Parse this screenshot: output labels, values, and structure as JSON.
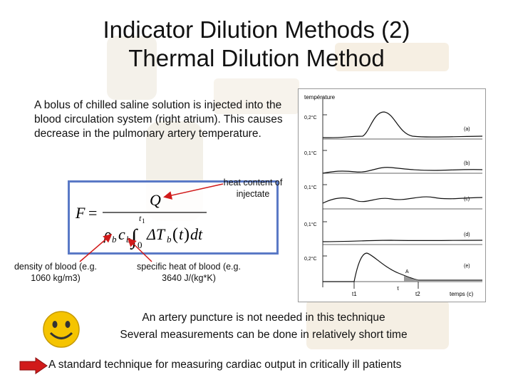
{
  "title": {
    "line1": "Indicator Dilution Methods (2)",
    "line2": "Thermal Dilution Method"
  },
  "intro_text": "A bolus of chilled saline solution is injected into the blood circulation system (right atrium). This causes decrease in the pulmonary artery temperature.",
  "annotations": {
    "heat_content": "heat content of injectate",
    "density": "density of blood (e.g. 1060 kg/m3)",
    "specific_heat": "specific heat of blood (e.g. 3640 J/(kg*K)"
  },
  "formula": {
    "lhs": "F",
    "equals": "=",
    "numerator": "Q",
    "rho": "ρ",
    "rho_sub": "b",
    "c": "c",
    "c_sub": "b",
    "integral": "∫",
    "lower": "0",
    "upper": "t",
    "upper_sub": "1",
    "delta": "ΔT",
    "delta_sub": "b",
    "lparen": "(",
    "t": "t",
    "rparen": ")",
    "dt": "dt"
  },
  "graph": {
    "title": "température",
    "xlabel": "temps (c)",
    "t1": "t1",
    "t2": "t2",
    "area_label": "A",
    "tau_label": "τ",
    "panels": [
      {
        "scale": "0,2°C",
        "label": "(a)"
      },
      {
        "scale": "0,1°C",
        "label": "(b)"
      },
      {
        "scale": "0,1°C",
        "label": "(c)"
      },
      {
        "scale": "0,1°C",
        "label": "(d)"
      },
      {
        "scale": "0,2°C",
        "label": "(e)"
      }
    ]
  },
  "bullets": {
    "line1": "An artery puncture is not needed in this technique",
    "line2": "Several measurements can be done in relatively short time"
  },
  "final_text": "A standard technique for measuring cardiac output in critically ill patients",
  "colors": {
    "formula_border": "#5a79c6",
    "arrow_red": "#d11a1a",
    "smiley_yellow": "#f5c400"
  },
  "icons": {
    "smiley": "smiley-face-icon",
    "arrow": "right-arrow-icon"
  }
}
